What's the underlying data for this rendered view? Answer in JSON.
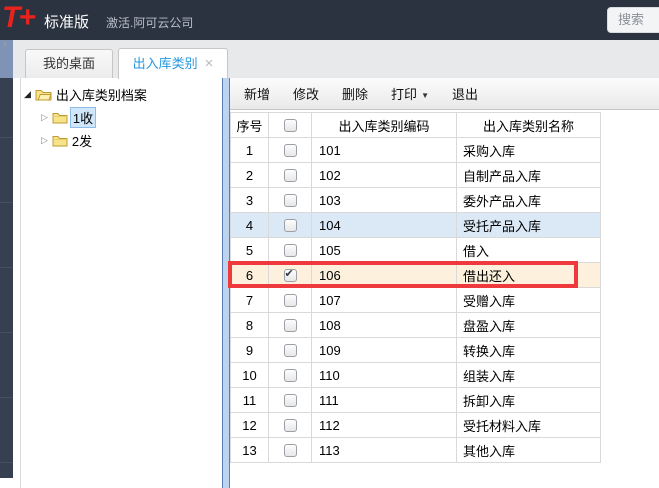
{
  "topbar": {
    "logo": "T+",
    "edition": "标准版",
    "account": "激活.阿可云公司",
    "search_label": "搜索"
  },
  "tabs": [
    {
      "label": "我的桌面",
      "active": false
    },
    {
      "label": "出入库类别",
      "active": true
    }
  ],
  "tree": {
    "root": {
      "label": "出入库类别档案",
      "expanded": true
    },
    "children": [
      {
        "label": "1收",
        "selected": true
      },
      {
        "label": "2发",
        "selected": false
      }
    ]
  },
  "toolbar": {
    "new_label": "新增",
    "edit_label": "修改",
    "delete_label": "删除",
    "print_label": "打印",
    "exit_label": "退出"
  },
  "table": {
    "columns": {
      "no": "序号",
      "code": "出入库类别编码",
      "name": "出入库类别名称"
    },
    "rows": [
      {
        "no": 1,
        "checked": false,
        "code": "101",
        "name": "采购入库"
      },
      {
        "no": 2,
        "checked": false,
        "code": "102",
        "name": "自制产品入库"
      },
      {
        "no": 3,
        "checked": false,
        "code": "103",
        "name": "委外产品入库"
      },
      {
        "no": 4,
        "checked": false,
        "code": "104",
        "name": "受托产品入库"
      },
      {
        "no": 5,
        "checked": false,
        "code": "105",
        "name": "借入"
      },
      {
        "no": 6,
        "checked": true,
        "code": "106",
        "name": "借出还入"
      },
      {
        "no": 7,
        "checked": false,
        "code": "107",
        "name": "受赠入库"
      },
      {
        "no": 8,
        "checked": false,
        "code": "108",
        "name": "盘盈入库"
      },
      {
        "no": 9,
        "checked": false,
        "code": "109",
        "name": "转换入库"
      },
      {
        "no": 10,
        "checked": false,
        "code": "110",
        "name": "组装入库"
      },
      {
        "no": 11,
        "checked": false,
        "code": "111",
        "name": "拆卸入库"
      },
      {
        "no": 12,
        "checked": false,
        "code": "112",
        "name": "受托材料入库"
      },
      {
        "no": 13,
        "checked": false,
        "code": "113",
        "name": "其他入库"
      }
    ],
    "selected_row_no": 4,
    "annotated_row_no": 6
  },
  "icons": {
    "chevron": "›",
    "close": "×",
    "caret_down": "▼",
    "tree_expanded": "◢",
    "tree_collapsed": "▷",
    "check": "✔"
  },
  "colors": {
    "topbar_bg": "#2a333f",
    "logo_red": "#e8231d",
    "active_tab_text": "#2598de",
    "selected_row_bg": "#dbe9f7",
    "annotated_row_bg": "#fdf0dc",
    "annotation_red": "#ee3a3c",
    "splitter_blue": "#bcd4f0",
    "nav_strip_bg": "#364050",
    "nav_strip_active": "#7e93b5"
  }
}
